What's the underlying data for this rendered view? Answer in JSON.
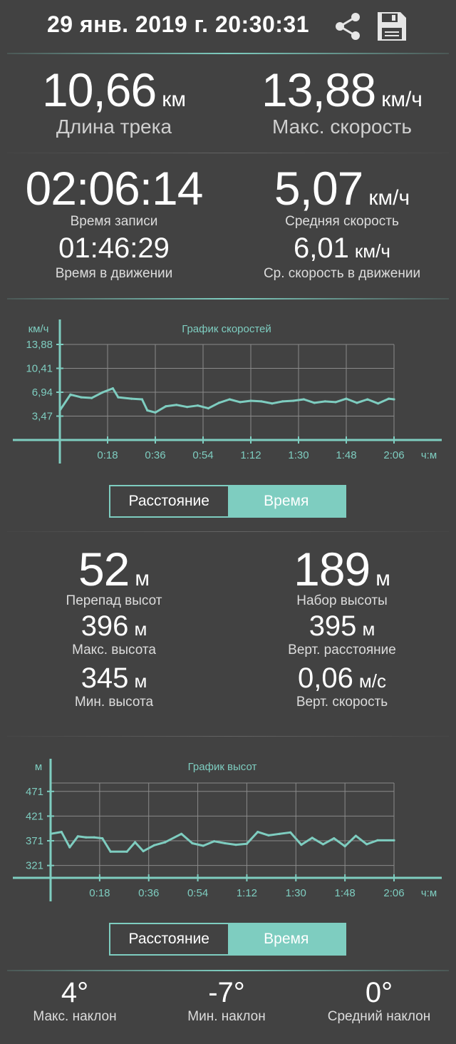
{
  "header": {
    "datetime": "29 янв. 2019 г. 20:30:31",
    "share_icon": "share-icon",
    "save_icon": "save-icon"
  },
  "summary": {
    "distance": {
      "value": "10,66",
      "unit": "км",
      "label": "Длина трека"
    },
    "max_speed": {
      "value": "13,88",
      "unit": "км/ч",
      "label": "Макс. скорость"
    }
  },
  "time_block": {
    "record_time": {
      "value": "02:06:14",
      "label": "Время записи"
    },
    "moving_time": {
      "value": "01:46:29",
      "label": "Время в движении"
    },
    "avg_speed": {
      "value": "5,07",
      "unit": "км/ч",
      "label": "Средняя скорость"
    },
    "avg_moving_speed": {
      "value": "6,01",
      "unit": "км/ч",
      "label": "Ср. скорость в движении"
    }
  },
  "speed_chart": {
    "title": "График скоростей",
    "y_unit": "км/ч",
    "x_unit": "ч:м",
    "y_ticks": [
      "13,88",
      "10,41",
      "6,94",
      "3,47"
    ],
    "x_ticks": [
      "0:18",
      "0:36",
      "0:54",
      "1:12",
      "1:30",
      "1:48",
      "2:06"
    ]
  },
  "speed_toggle": {
    "distance": "Расстояние",
    "time": "Время",
    "selected": "time"
  },
  "elevation": {
    "diff": {
      "value": "52",
      "unit": "м",
      "label": "Перепад высот"
    },
    "gain": {
      "value": "189",
      "unit": "м",
      "label": "Набор высоты"
    },
    "max": {
      "value": "396",
      "unit": "м",
      "label": "Макс. высота"
    },
    "vert_dist": {
      "value": "395",
      "unit": "м",
      "label": "Верт. расстояние"
    },
    "min": {
      "value": "345",
      "unit": "м",
      "label": "Мин. высота"
    },
    "vert_speed": {
      "value": "0,06",
      "unit": "м/с",
      "label": "Верт. скорость"
    }
  },
  "elevation_chart": {
    "title": "График высот",
    "y_unit": "м",
    "x_unit": "ч:м",
    "y_ticks": [
      "471",
      "421",
      "371",
      "321"
    ],
    "x_ticks": [
      "0:18",
      "0:36",
      "0:54",
      "1:12",
      "1:30",
      "1:48",
      "2:06"
    ]
  },
  "elevation_toggle": {
    "distance": "Расстояние",
    "time": "Время",
    "selected": "time"
  },
  "slopes": {
    "max": {
      "value": "4°",
      "label": "Макс. наклон"
    },
    "min": {
      "value": "-7°",
      "label": "Мин. наклон"
    },
    "avg": {
      "value": "0°",
      "label": "Средний наклон"
    }
  },
  "colors": {
    "background": "#424242",
    "accent": "#7ecdc0",
    "text": "#ffffff"
  },
  "chart_data": [
    {
      "type": "line",
      "title": "График скоростей",
      "xlabel": "ч:м",
      "ylabel": "км/ч",
      "ylim": [
        0,
        13.88
      ],
      "xlim": [
        "0:00",
        "2:06"
      ],
      "x": [
        "0:00",
        "0:04",
        "0:08",
        "0:12",
        "0:16",
        "0:20",
        "0:22",
        "0:27",
        "0:31",
        "0:33",
        "0:36",
        "0:40",
        "0:44",
        "0:48",
        "0:52",
        "0:56",
        "1:00",
        "1:04",
        "1:08",
        "1:12",
        "1:16",
        "1:20",
        "1:24",
        "1:28",
        "1:32",
        "1:36",
        "1:40",
        "1:44",
        "1:48",
        "1:52",
        "1:56",
        "2:00",
        "2:04",
        "2:06"
      ],
      "series": [
        {
          "values": [
            4.3,
            6.6,
            6.2,
            6.1,
            6.9,
            7.5,
            6.2,
            6.0,
            5.9,
            4.3,
            4.0,
            4.9,
            5.1,
            4.8,
            5.0,
            4.6,
            5.4,
            5.9,
            5.5,
            5.7,
            5.6,
            5.3,
            5.6,
            5.7,
            5.9,
            5.4,
            5.6,
            5.5,
            6.0,
            5.4,
            5.9,
            5.3,
            6.0,
            5.9
          ]
        }
      ]
    },
    {
      "type": "line",
      "title": "График высот",
      "xlabel": "ч:м",
      "ylabel": "м",
      "ylim": [
        296,
        488
      ],
      "xlim": [
        "0:00",
        "2:06"
      ],
      "x": [
        "0:00",
        "0:04",
        "0:07",
        "0:10",
        "0:13",
        "0:16",
        "0:19",
        "0:22",
        "0:28",
        "0:31",
        "0:34",
        "0:38",
        "0:42",
        "0:48",
        "0:52",
        "0:56",
        "1:00",
        "1:04",
        "1:08",
        "1:12",
        "1:16",
        "1:20",
        "1:24",
        "1:28",
        "1:32",
        "1:36",
        "1:40",
        "1:44",
        "1:48",
        "1:52",
        "1:56",
        "2:00",
        "2:06"
      ],
      "series": [
        {
          "values": [
            385,
            389,
            358,
            380,
            378,
            378,
            376,
            349,
            349,
            368,
            350,
            362,
            368,
            385,
            366,
            361,
            370,
            366,
            363,
            365,
            389,
            382,
            385,
            388,
            363,
            377,
            364,
            376,
            360,
            381,
            364,
            372,
            372
          ]
        }
      ]
    }
  ]
}
